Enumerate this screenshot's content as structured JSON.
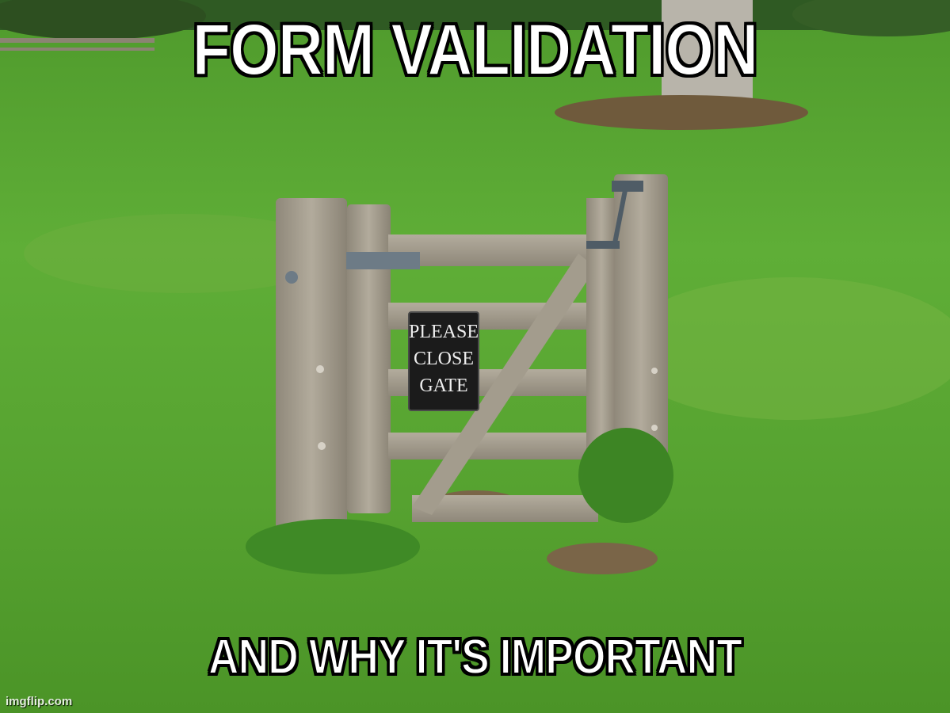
{
  "meme": {
    "top_text": "FORM VALIDATION",
    "bottom_text": "AND WHY IT'S IMPORTANT",
    "sign_lines": [
      "PLEASE",
      "CLOSE",
      "GATE"
    ],
    "watermark": "imgflip.com"
  },
  "colors": {
    "grass": "#5aa032",
    "grass_dark": "#3f8a26",
    "wood": "#a8a192",
    "wood_dark": "#7d7668",
    "sign": "#1b1b1b",
    "caption_fill": "#ffffff",
    "caption_outline": "#000000"
  }
}
